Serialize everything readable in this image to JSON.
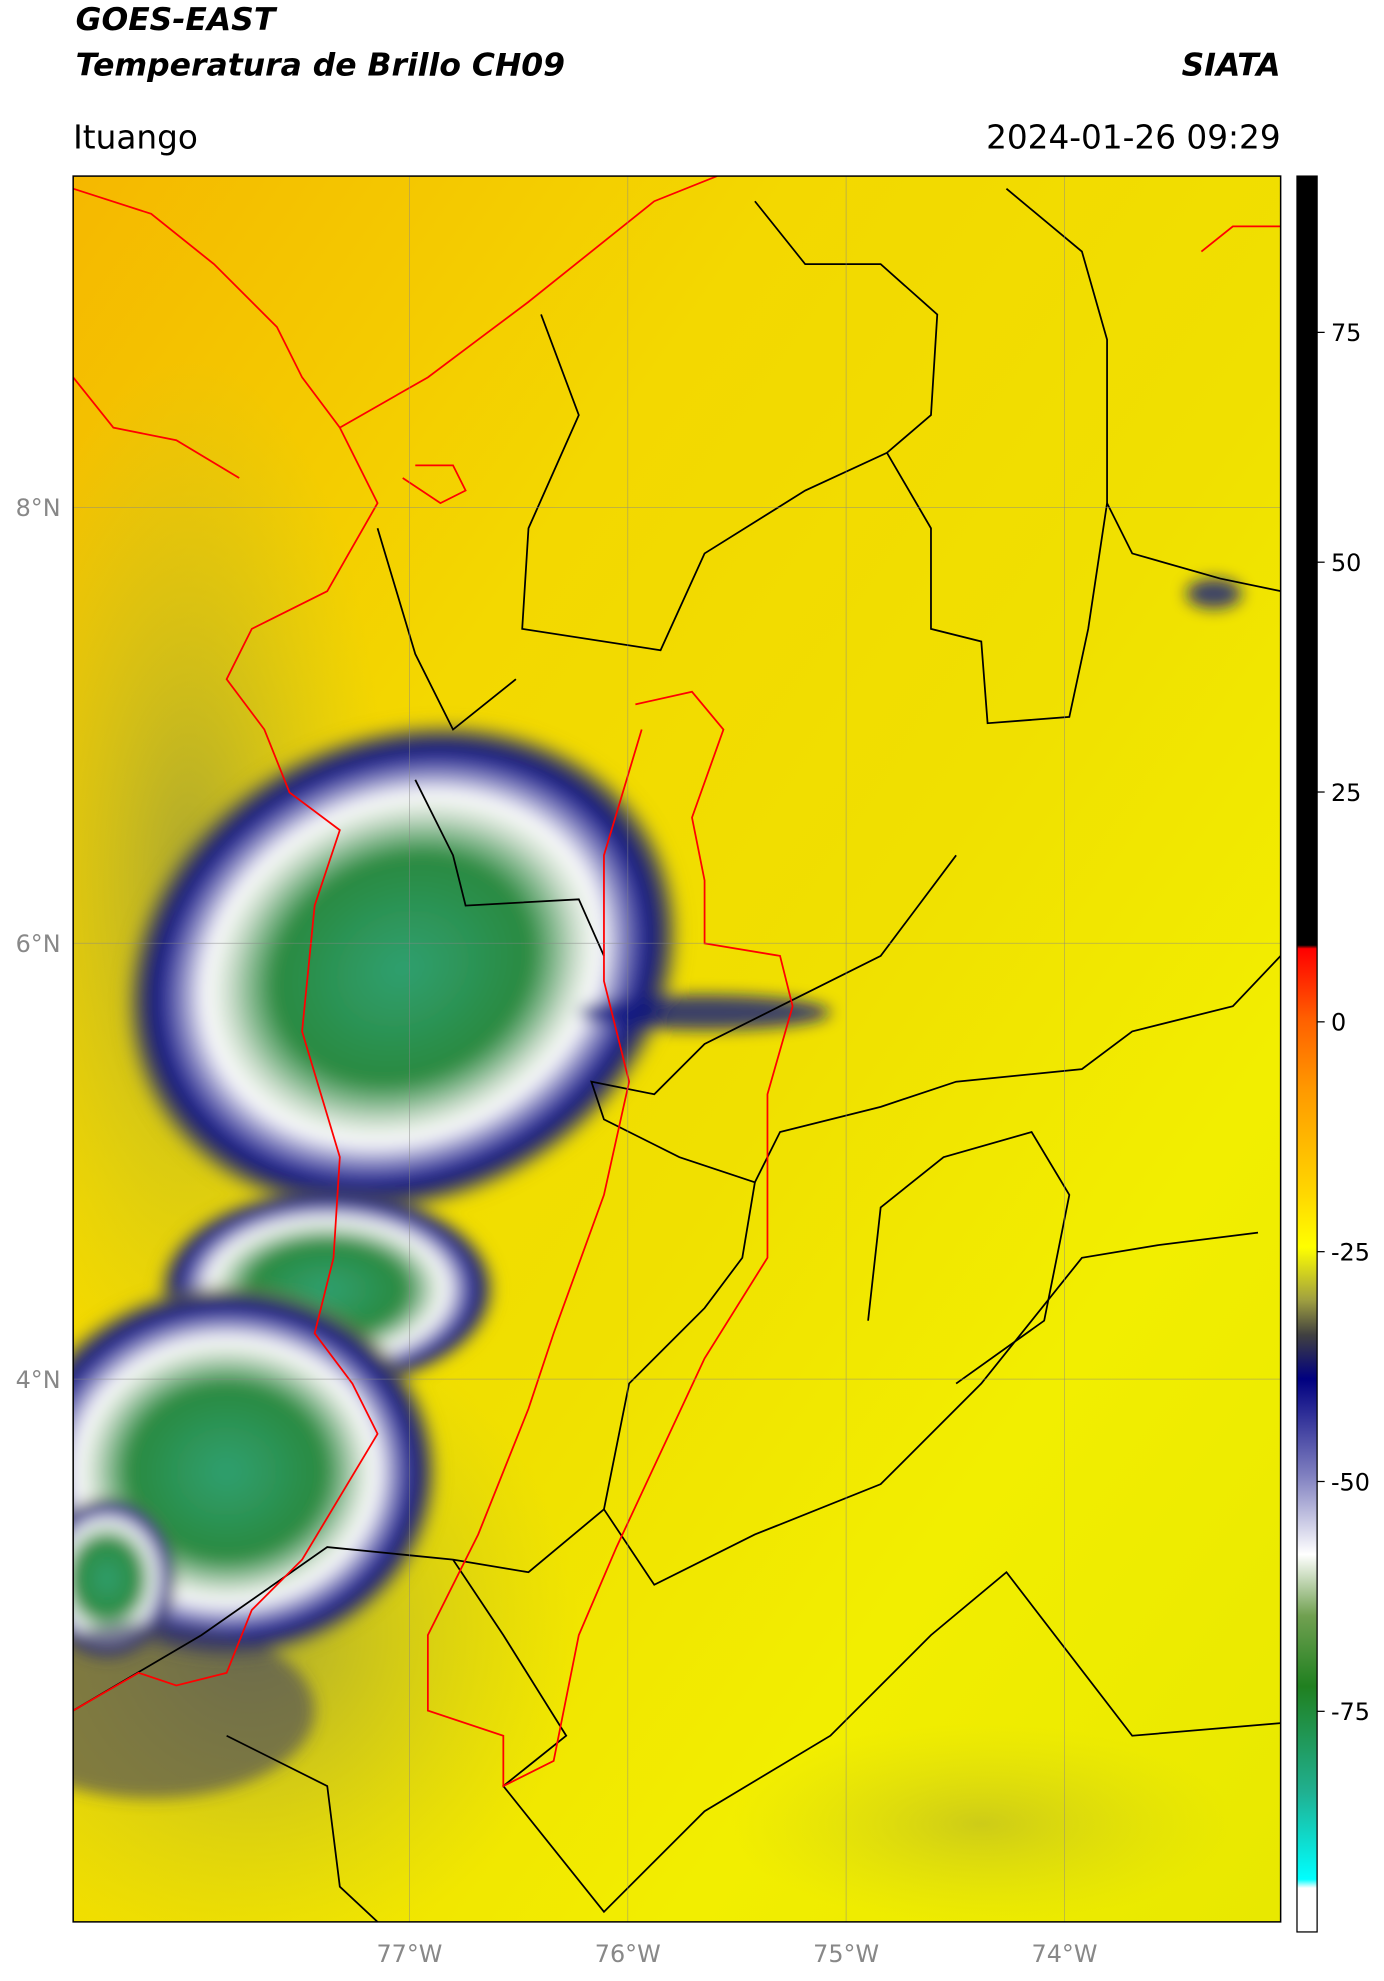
{
  "header": {
    "title": "GOES-EAST",
    "subtitle": "Temperatura de Brillo CH09",
    "source": "SIATA",
    "location": "Ituango",
    "datetime": "2024-01-26 09:29"
  },
  "map": {
    "lonlim": [
      -78.54,
      -73.01
    ],
    "latlim": [
      1.51,
      9.52
    ],
    "lonticks": [
      {
        "value": -77,
        "label": "77°W"
      },
      {
        "value": -76,
        "label": "76°W"
      },
      {
        "value": -75,
        "label": "75°W"
      },
      {
        "value": -74,
        "label": "74°W"
      }
    ],
    "latticks": [
      {
        "value": 8,
        "label": "8°N"
      },
      {
        "value": 6,
        "label": "6°N"
      },
      {
        "value": 4,
        "label": "4°N"
      }
    ],
    "grid": true
  },
  "colorbar": {
    "lim": [
      -99,
      92
    ],
    "ticks": [
      75,
      50,
      25,
      0,
      -25,
      -50,
      -75
    ]
  }
}
